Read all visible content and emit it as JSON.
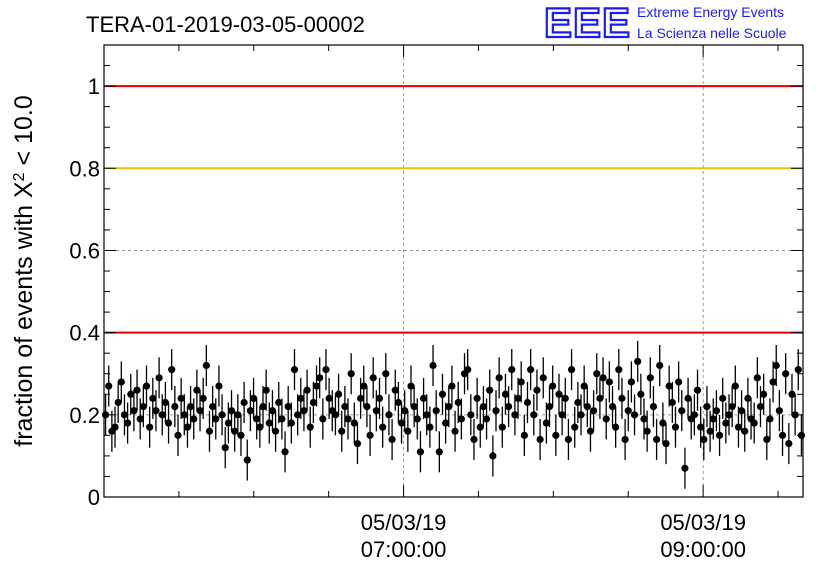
{
  "header": {
    "title": "TERA-01-2019-03-05-00002",
    "logo_mark": "EEE",
    "logo_line1": "Extreme Energy Events",
    "logo_line2": "La Scienza nelle Scuole"
  },
  "chart_data": {
    "type": "scatter",
    "title": "TERA-01-2019-03-05-00002",
    "ylabel_main": "fraction of events with X",
    "ylabel_sup": "2",
    "ylabel_tail": " < 10.0",
    "xlabel": "",
    "ylim": [
      0,
      1.1
    ],
    "yticks": [
      0,
      0.2,
      0.4,
      0.6,
      0.8,
      1
    ],
    "ytick_labels": [
      "0",
      "0.2",
      "0.4",
      "0.6",
      "0.8",
      "1"
    ],
    "xlim": [
      "05/03/19 05:00:00",
      "05/03/19 09:40:00"
    ],
    "xticks": [
      {
        "line1": "05/03/19",
        "line2": "07:00:00",
        "x": "05/03/19 07:00:00"
      },
      {
        "line1": "05/03/19",
        "line2": "09:00:00",
        "x": "05/03/19 09:00:00"
      }
    ],
    "grid": true,
    "reference_lines": [
      {
        "y": 1.0,
        "color": "#e00000"
      },
      {
        "y": 0.8,
        "color": "#f0c000"
      },
      {
        "y": 0.4,
        "color": "#e00000"
      }
    ],
    "marker_color": "#000000",
    "error_bar": 0.05,
    "series": [
      {
        "values": [
          0.2,
          0.27,
          0.16,
          0.17,
          0.23,
          0.28,
          0.2,
          0.18,
          0.25,
          0.21,
          0.26,
          0.19,
          0.22,
          0.27,
          0.17,
          0.24,
          0.21,
          0.29,
          0.2,
          0.23,
          0.18,
          0.31,
          0.22,
          0.15,
          0.24,
          0.2,
          0.17,
          0.22,
          0.19,
          0.26,
          0.21,
          0.24,
          0.32,
          0.16,
          0.22,
          0.19,
          0.27,
          0.2,
          0.12,
          0.18,
          0.21,
          0.16,
          0.2,
          0.15,
          0.23,
          0.09,
          0.21,
          0.24,
          0.19,
          0.17,
          0.22,
          0.26,
          0.18,
          0.21,
          0.16,
          0.23,
          0.19,
          0.11,
          0.22,
          0.18,
          0.31,
          0.2,
          0.24,
          0.21,
          0.26,
          0.17,
          0.23,
          0.27,
          0.29,
          0.19,
          0.31,
          0.24,
          0.21,
          0.2,
          0.25,
          0.16,
          0.22,
          0.19,
          0.3,
          0.18,
          0.13,
          0.24,
          0.27,
          0.22,
          0.15,
          0.29,
          0.21,
          0.24,
          0.17,
          0.3,
          0.2,
          0.14,
          0.26,
          0.23,
          0.18,
          0.21,
          0.16,
          0.27,
          0.22,
          0.19,
          0.11,
          0.24,
          0.2,
          0.17,
          0.32,
          0.21,
          0.11,
          0.25,
          0.18,
          0.22,
          0.27,
          0.16,
          0.23,
          0.19,
          0.3,
          0.31,
          0.2,
          0.14,
          0.24,
          0.17,
          0.22,
          0.19,
          0.26,
          0.1,
          0.21,
          0.29,
          0.17,
          0.25,
          0.22,
          0.31,
          0.2,
          0.24,
          0.28,
          0.15,
          0.23,
          0.31,
          0.2,
          0.26,
          0.14,
          0.29,
          0.18,
          0.22,
          0.27,
          0.15,
          0.25,
          0.2,
          0.24,
          0.14,
          0.31,
          0.17,
          0.23,
          0.2,
          0.27,
          0.22,
          0.16,
          0.21,
          0.3,
          0.24,
          0.29,
          0.19,
          0.28,
          0.22,
          0.17,
          0.31,
          0.24,
          0.14,
          0.21,
          0.28,
          0.2,
          0.33,
          0.25,
          0.19,
          0.16,
          0.29,
          0.22,
          0.14,
          0.32,
          0.18,
          0.13,
          0.27,
          0.23,
          0.17,
          0.28,
          0.21,
          0.07,
          0.24,
          0.19,
          0.2,
          0.26,
          0.17,
          0.14,
          0.22,
          0.16,
          0.19,
          0.21,
          0.15,
          0.24,
          0.18,
          0.2,
          0.22,
          0.27,
          0.17,
          0.21,
          0.16,
          0.24,
          0.19,
          0.18,
          0.29,
          0.22,
          0.25,
          0.14,
          0.19,
          0.28,
          0.32,
          0.21,
          0.15,
          0.3,
          0.13,
          0.25,
          0.2,
          0.31,
          0.15
        ]
      }
    ]
  }
}
